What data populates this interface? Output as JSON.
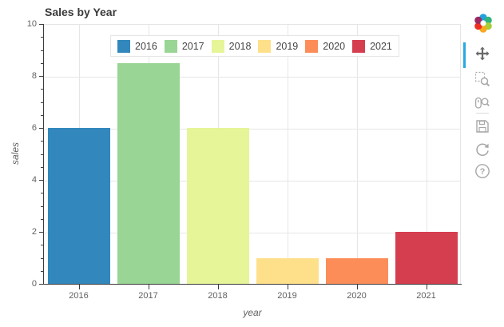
{
  "chart_data": {
    "type": "bar",
    "title": "Sales by Year",
    "categories": [
      "2016",
      "2017",
      "2018",
      "2019",
      "2020",
      "2021"
    ],
    "values": [
      6,
      8.5,
      6,
      1,
      1,
      2
    ],
    "bar_colors": [
      "#3288bd",
      "#99d594",
      "#e6f598",
      "#fee08b",
      "#fc8d59",
      "#d53e4f"
    ],
    "xlabel": "year",
    "ylabel": "sales",
    "ylim": [
      0,
      10
    ],
    "yticks": [
      "0",
      "2",
      "4",
      "6",
      "8",
      "10"
    ],
    "grid": true,
    "legend_position": "top_center",
    "legend_labels": [
      "2016",
      "2017",
      "2018",
      "2019",
      "2020",
      "2021"
    ]
  },
  "toolbar": {
    "logo": "bokeh-logo",
    "active_tool_color": "#26aae1",
    "tools": [
      {
        "icon": "pan-icon",
        "active": true
      },
      {
        "icon": "box-zoom-icon",
        "active": false
      },
      {
        "icon": "wheel-zoom-icon",
        "active": false
      },
      {
        "icon": "save-icon",
        "active": false
      },
      {
        "icon": "reset-icon",
        "active": false
      },
      {
        "icon": "help-icon",
        "active": false
      }
    ]
  },
  "colors": {
    "grid_line": "#e6e6e6",
    "axis_line": "#3c3c3c",
    "tick_label": "#616161",
    "axis_label": "#616161",
    "title": "#3a3a3a",
    "legend_border": "#e5e5e5",
    "tool_icon_inactive": "#a8a8a8",
    "tool_icon_active": "#696969"
  }
}
